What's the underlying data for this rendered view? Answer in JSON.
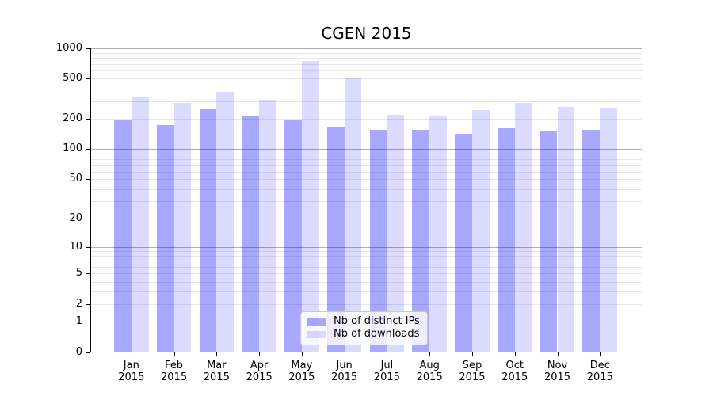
{
  "title": "CGEN 2015",
  "chart_data": {
    "type": "bar",
    "title": "CGEN 2015",
    "categories": [
      "Jan",
      "Feb",
      "Mar",
      "Apr",
      "May",
      "Jun",
      "Jul",
      "Aug",
      "Sep",
      "Oct",
      "Nov",
      "Dec"
    ],
    "category_year": "2015",
    "series": [
      {
        "name": "Nb of distinct IPs",
        "color": "rgba(0,0,255,0.34)",
        "values": [
          197,
          174,
          253,
          212,
          199,
          167,
          155,
          155,
          142,
          162,
          151,
          156
        ]
      },
      {
        "name": "Nb of downloads",
        "color": "rgba(0,0,255,0.14)",
        "values": [
          335,
          290,
          368,
          310,
          753,
          500,
          219,
          215,
          243,
          287,
          262,
          260
        ]
      }
    ],
    "yscale": "log10(value+1)",
    "ytick_values": [
      0,
      1,
      2,
      5,
      10,
      20,
      50,
      100,
      200,
      500,
      1000
    ],
    "ytick_labels": [
      "0",
      "1",
      "2",
      "5",
      "10",
      "20",
      "50",
      "100",
      "200",
      "500",
      "1000"
    ],
    "ylim": [
      0,
      1040
    ],
    "xlabel": "",
    "ylabel": "",
    "grid": {
      "orientation": "horizontal",
      "major_values": [
        1,
        10,
        100,
        1000
      ],
      "minor_values": "2-9, 20-90, 200-900"
    },
    "legend": {
      "position": "inside-bottom-center",
      "entries": [
        "Nb of distinct IPs",
        "Nb of downloads"
      ]
    }
  },
  "colors": {
    "bar_distinct_ips": "rgba(0,0,255,0.34)",
    "bar_downloads": "rgba(0,0,255,0.14)",
    "major_grid": "#b0b0b0",
    "minor_grid": "#e6e6ea",
    "spine": "#000000",
    "legend_border": "#c8c8c8",
    "legend_background": "rgba(255,255,255,0.8)",
    "background": "#ffffff",
    "text": "#000000"
  }
}
